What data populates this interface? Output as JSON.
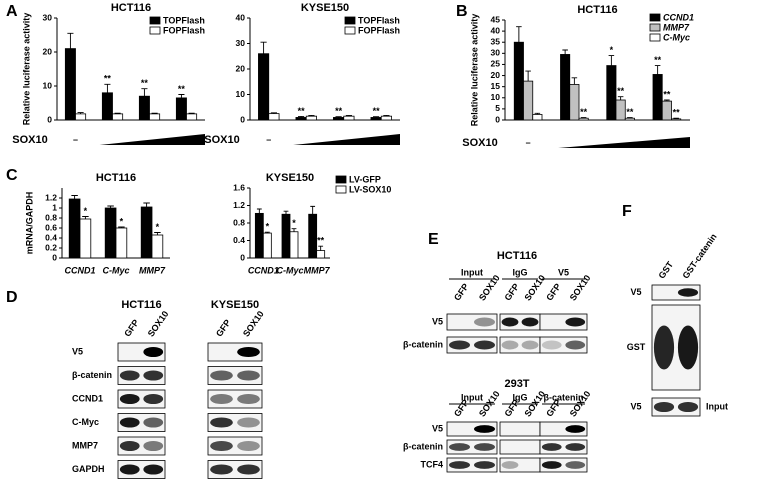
{
  "panel_labels": [
    "A",
    "B",
    "C",
    "D",
    "E",
    "F"
  ],
  "chart_data": [
    {
      "type": "bar",
      "title": "HCT116",
      "ylabel": "Relative luciferase activity",
      "xlabel": "SOX10",
      "dose_wedge": true,
      "categories": [
        "–",
        null,
        null,
        null
      ],
      "series": [
        {
          "name": "TOPFlash",
          "color": "#000000",
          "values": [
            21,
            8,
            7,
            6.5
          ],
          "errors": [
            4.5,
            2.5,
            2.2,
            1
          ],
          "annotations": [
            null,
            "**",
            "**",
            "**"
          ]
        },
        {
          "name": "FOPFlash",
          "color": "#ffffff",
          "values": [
            1.8,
            1.8,
            1.8,
            1.8
          ],
          "errors": [
            0.4,
            0.2,
            0.2,
            0.2
          ]
        }
      ],
      "ylim": [
        0,
        30
      ],
      "yticks": [
        0,
        10,
        20,
        30
      ],
      "legend": "upper right"
    },
    {
      "type": "bar",
      "title": "KYSE150",
      "xlabel": "SOX10",
      "dose_wedge": true,
      "categories": [
        "–",
        null,
        null,
        null
      ],
      "series": [
        {
          "name": "TOPFlash",
          "color": "#000000",
          "values": [
            26,
            1,
            1,
            1
          ],
          "errors": [
            4.5,
            0.4,
            0.3,
            0.3
          ],
          "annotations": [
            null,
            "**",
            "**",
            "**"
          ]
        },
        {
          "name": "FOPFlash",
          "color": "#ffffff",
          "values": [
            2.5,
            1.5,
            1.5,
            1.5
          ],
          "errors": [
            0.3,
            0.3,
            0.3,
            0.3
          ]
        }
      ],
      "ylim": [
        0,
        40
      ],
      "yticks": [
        0,
        10,
        20,
        30,
        40
      ],
      "legend": "upper right"
    },
    {
      "type": "bar",
      "title": "HCT116",
      "ylabel": "Relative luciferase activity",
      "xlabel": "SOX10",
      "dose_wedge": true,
      "italic_legend": true,
      "categories": [
        "–",
        null,
        null,
        null
      ],
      "series": [
        {
          "name": "CCND1",
          "color": "#000000",
          "values": [
            35,
            29.5,
            24.5,
            20.5
          ],
          "errors": [
            7,
            2,
            4.5,
            4
          ],
          "annotations": [
            null,
            null,
            "*",
            "**"
          ]
        },
        {
          "name": "MMP7",
          "color": "#c0c0c0",
          "values": [
            17.5,
            16,
            9,
            8.5
          ],
          "errors": [
            4.5,
            3,
            1.5,
            0.5
          ],
          "annotations": [
            null,
            null,
            "**",
            "**"
          ]
        },
        {
          "name": "C-Myc",
          "color": "#ffffff",
          "values": [
            2.5,
            0.8,
            0.8,
            0.5
          ],
          "errors": [
            0.5,
            0.3,
            0.3,
            0.3
          ],
          "annotations": [
            null,
            "**",
            "**",
            "**"
          ]
        }
      ],
      "ylim": [
        0,
        45
      ],
      "yticks": [
        0,
        5,
        10,
        15,
        20,
        25,
        30,
        35,
        40,
        45
      ],
      "legend": "upper right"
    },
    {
      "type": "bar",
      "title": "HCT116",
      "ylabel": "mRNA/GAPDH",
      "italic_categories": true,
      "categories": [
        "CCND1",
        "C-Myc",
        "MMP7"
      ],
      "series": [
        {
          "color": "#000000",
          "values": [
            1.18,
            1.0,
            1.02
          ],
          "errors": [
            0.07,
            0.04,
            0.08
          ]
        },
        {
          "color": "#ffffff",
          "values": [
            0.78,
            0.6,
            0.46
          ],
          "errors": [
            0.05,
            0.02,
            0.05
          ],
          "annotations": [
            "*",
            "*",
            "*"
          ]
        }
      ],
      "ylim": [
        0,
        1.4
      ],
      "yticks": [
        0,
        0.2,
        0.4,
        0.6,
        0.8,
        1,
        1.2
      ]
    },
    {
      "type": "bar",
      "title": "KYSE150",
      "italic_categories": true,
      "categories": [
        "CCND1",
        "C-Myc",
        "MMP7"
      ],
      "series": [
        {
          "name": "LV-GFP",
          "color": "#000000",
          "values": [
            1.02,
            1.0,
            1.0
          ],
          "errors": [
            0.1,
            0.07,
            0.18
          ]
        },
        {
          "name": "LV-SOX10",
          "color": "#ffffff",
          "values": [
            0.57,
            0.6,
            0.17
          ],
          "errors": [
            0.02,
            0.07,
            0.1
          ],
          "annotations": [
            "*",
            "*",
            "**"
          ]
        }
      ],
      "ylim": [
        0,
        1.6
      ],
      "yticks": [
        0,
        0.4,
        0.8,
        1.2,
        1.6
      ],
      "legend": "right"
    }
  ],
  "panel_D": {
    "groups": [
      {
        "title": "HCT116",
        "lanes": [
          "GFP",
          "SOX10"
        ]
      },
      {
        "title": "KYSE150",
        "lanes": [
          "GFP",
          "SOX10"
        ]
      }
    ],
    "rows": [
      "V5",
      "β-catenin",
      "CCND1",
      "C-Myc",
      "MMP7",
      "GAPDH"
    ]
  },
  "panel_E": {
    "blocks": [
      {
        "title": "HCT116",
        "groups": [
          {
            "name": "Input",
            "lanes": [
              "GFP",
              "SOX10"
            ]
          },
          {
            "name": "IgG",
            "lanes": [
              "GFP",
              "SOX10"
            ]
          },
          {
            "name": "V5",
            "lanes": [
              "GFP",
              "SOX10"
            ]
          }
        ],
        "rows": [
          "V5",
          "β-catenin"
        ]
      },
      {
        "title": "293T",
        "groups": [
          {
            "name": "Input",
            "lanes": [
              "GFP",
              "SOX10"
            ]
          },
          {
            "name": "IgG",
            "lanes": [
              "GFP",
              "SOX10"
            ]
          },
          {
            "name": "β-catenin",
            "lanes": [
              "GFP",
              "SOX10"
            ]
          }
        ],
        "rows": [
          "V5",
          "β-catenin",
          "TCF4"
        ]
      }
    ]
  },
  "panel_F": {
    "lanes": [
      "GST",
      "GST-catenin"
    ],
    "rows": [
      "V5",
      "GST",
      "V5"
    ],
    "input_label": "Input"
  }
}
